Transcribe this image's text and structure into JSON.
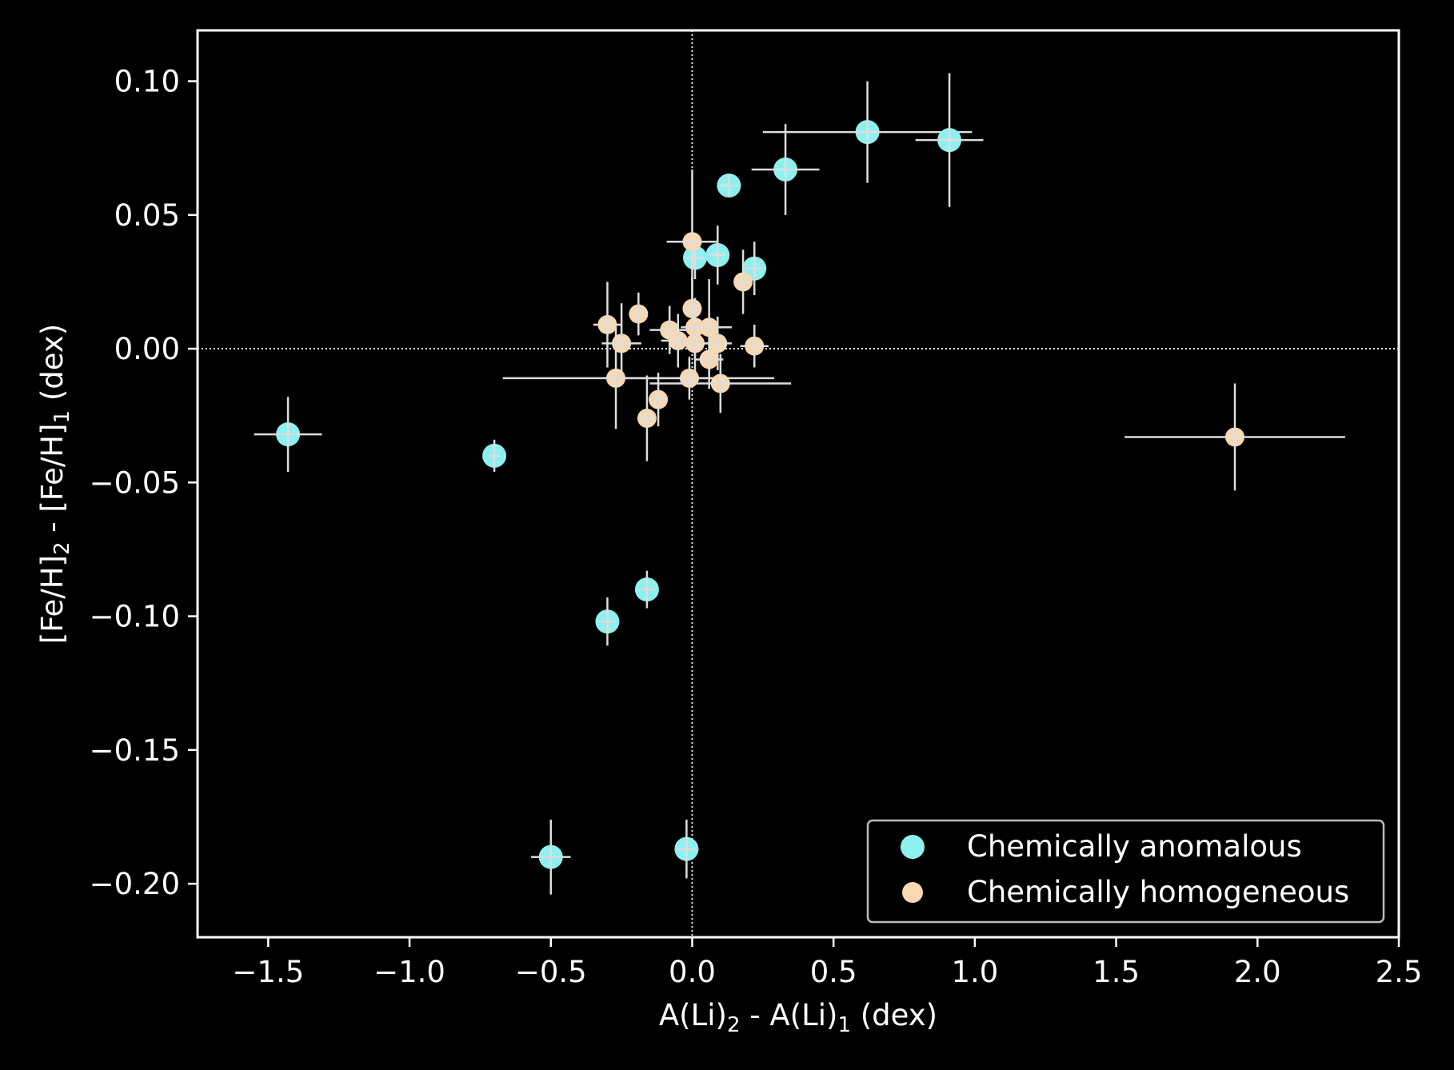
{
  "chart_data": {
    "type": "scatter",
    "title": "",
    "xlabel": {
      "base1": "A(Li)",
      "sub1": "2",
      "mid": " - A(Li)",
      "sub2": "1",
      "tail": " (dex)"
    },
    "ylabel": {
      "base1": "[Fe/H]",
      "sub1": "2",
      "mid": " - [Fe/H]",
      "sub2": "1",
      "tail": " (dex)"
    },
    "xlim": [
      -1.75,
      2.5
    ],
    "ylim": [
      -0.22,
      0.119
    ],
    "xticks": [
      -1.5,
      -1.0,
      -0.5,
      0.0,
      0.5,
      1.0,
      1.5,
      2.0,
      2.5
    ],
    "xtick_labels": [
      "−1.5",
      "−1.0",
      "−0.5",
      "0.0",
      "0.5",
      "1.0",
      "1.5",
      "2.0",
      "2.5"
    ],
    "yticks": [
      0.1,
      0.05,
      0.0,
      -0.05,
      -0.1,
      -0.15,
      -0.2
    ],
    "ytick_labels": [
      "0.10",
      "0.05",
      "0.00",
      "−0.05",
      "−0.10",
      "−0.15",
      "−0.20"
    ],
    "reference_lines": {
      "x": 0.0,
      "y": 0.0
    },
    "grid": false,
    "legend_position": "lower-right",
    "colors": {
      "background": "#000000",
      "axes": "#ffffff",
      "errorbar": "#dddddd"
    },
    "series": [
      {
        "name": "Chemically anomalous",
        "color": "#8ff0f0",
        "points": [
          {
            "x": -1.43,
            "y": -0.032,
            "xerr": 0.12,
            "yerr": 0.014
          },
          {
            "x": -0.7,
            "y": -0.04,
            "xerr": 0.02,
            "yerr": 0.006
          },
          {
            "x": -0.3,
            "y": -0.102,
            "xerr": 0.03,
            "yerr": 0.009
          },
          {
            "x": -0.16,
            "y": -0.09,
            "xerr": 0.03,
            "yerr": 0.007
          },
          {
            "x": -0.5,
            "y": -0.19,
            "xerr": 0.07,
            "yerr": 0.014
          },
          {
            "x": -0.02,
            "y": -0.187,
            "xerr": 0.03,
            "yerr": 0.011
          },
          {
            "x": 0.01,
            "y": 0.034,
            "xerr": 0.03,
            "yerr": 0.008
          },
          {
            "x": 0.09,
            "y": 0.035,
            "xerr": 0.03,
            "yerr": 0.011
          },
          {
            "x": 0.22,
            "y": 0.03,
            "xerr": 0.03,
            "yerr": 0.01
          },
          {
            "x": 0.13,
            "y": 0.061,
            "xerr": 0.03,
            "yerr": 0.004
          },
          {
            "x": 0.33,
            "y": 0.067,
            "xerr": 0.12,
            "yerr": 0.017
          },
          {
            "x": 0.62,
            "y": 0.081,
            "xerr": 0.37,
            "yerr": 0.019
          },
          {
            "x": 0.91,
            "y": 0.078,
            "xerr": 0.12,
            "yerr": 0.025
          }
        ]
      },
      {
        "name": "Chemically homogeneous",
        "color": "#f8d8b0",
        "points": [
          {
            "x": 0.0,
            "y": 0.04,
            "xerr": 0.09,
            "yerr": 0.027
          },
          {
            "x": 0.18,
            "y": 0.025,
            "xerr": 0.03,
            "yerr": 0.012
          },
          {
            "x": -0.19,
            "y": 0.013,
            "xerr": 0.02,
            "yerr": 0.008
          },
          {
            "x": -0.3,
            "y": 0.009,
            "xerr": 0.05,
            "yerr": 0.016
          },
          {
            "x": -0.25,
            "y": 0.002,
            "xerr": 0.07,
            "yerr": 0.015
          },
          {
            "x": -0.08,
            "y": 0.007,
            "xerr": 0.07,
            "yerr": 0.009
          },
          {
            "x": -0.05,
            "y": 0.003,
            "xerr": 0.06,
            "yerr": 0.01
          },
          {
            "x": 0.0,
            "y": 0.015,
            "xerr": 0.03,
            "yerr": 0.012
          },
          {
            "x": 0.01,
            "y": 0.008,
            "xerr": 0.05,
            "yerr": 0.011
          },
          {
            "x": 0.06,
            "y": 0.008,
            "xerr": 0.08,
            "yerr": 0.018
          },
          {
            "x": 0.01,
            "y": 0.002,
            "xerr": 0.05,
            "yerr": 0.012
          },
          {
            "x": 0.09,
            "y": 0.002,
            "xerr": 0.05,
            "yerr": 0.01
          },
          {
            "x": 0.22,
            "y": 0.001,
            "xerr": 0.05,
            "yerr": 0.008
          },
          {
            "x": 0.06,
            "y": -0.004,
            "xerr": 0.05,
            "yerr": 0.011
          },
          {
            "x": -0.27,
            "y": -0.011,
            "xerr": 0.4,
            "yerr": 0.019
          },
          {
            "x": -0.01,
            "y": -0.011,
            "xerr": 0.3,
            "yerr": 0.008
          },
          {
            "x": 0.1,
            "y": -0.013,
            "xerr": 0.25,
            "yerr": 0.011
          },
          {
            "x": -0.12,
            "y": -0.019,
            "xerr": 0.03,
            "yerr": 0.01
          },
          {
            "x": -0.16,
            "y": -0.026,
            "xerr": 0.03,
            "yerr": 0.016
          },
          {
            "x": 1.92,
            "y": -0.033,
            "xerr": 0.39,
            "yerr": 0.02
          }
        ]
      }
    ]
  }
}
